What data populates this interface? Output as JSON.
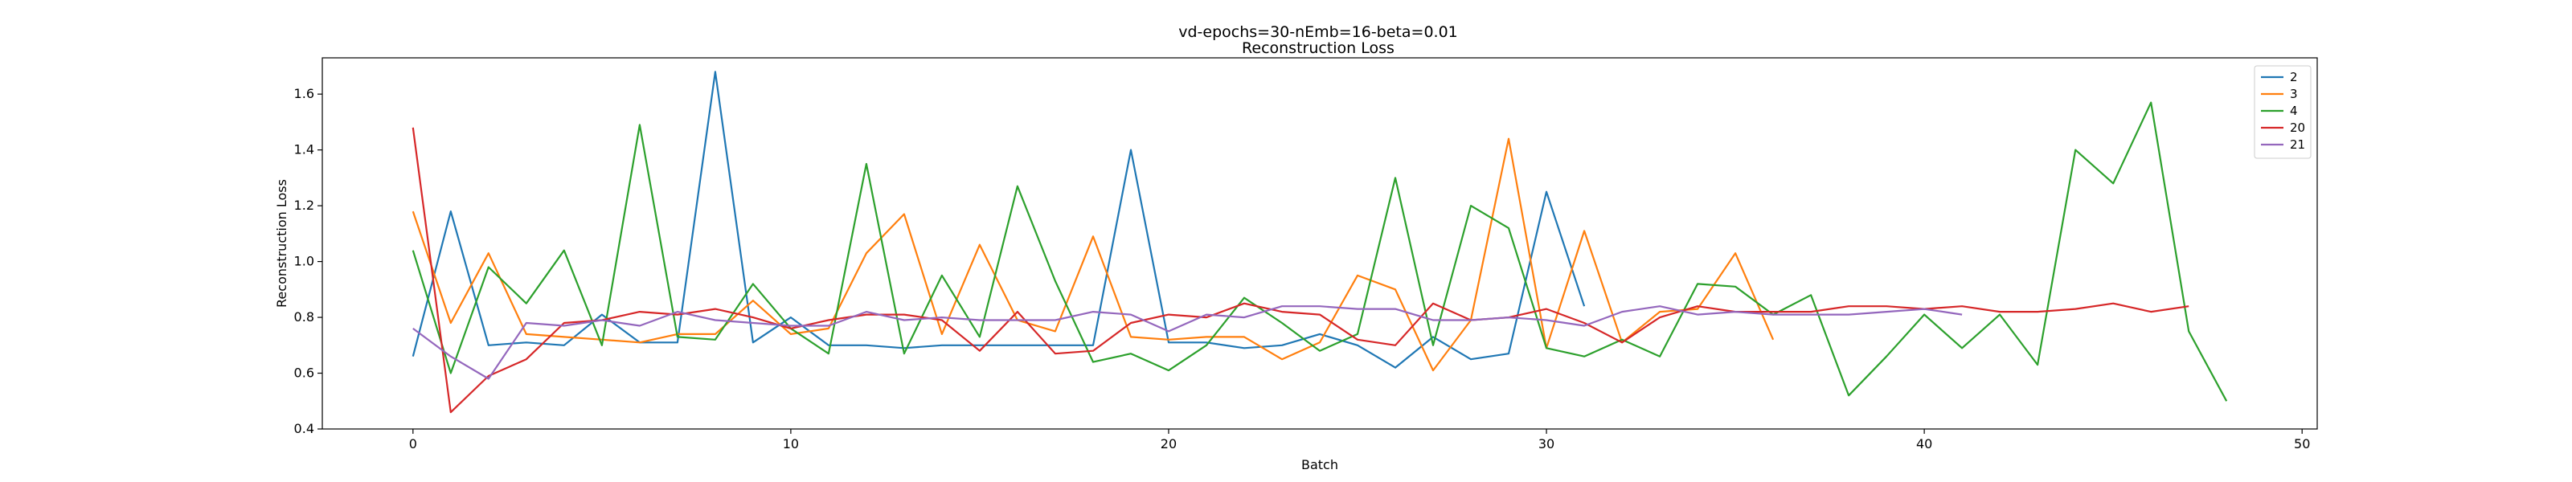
{
  "chart_data": {
    "type": "line",
    "title": "vd-epochs=30-nEmb=16-beta=0.01",
    "subtitle": "Reconstruction Loss",
    "xlabel": "Batch",
    "ylabel": "Reconstruction Loss",
    "xlim": [
      -2.4,
      50.4
    ],
    "ylim": [
      0.4,
      1.73
    ],
    "xticks": [
      0,
      10,
      20,
      30,
      40,
      50
    ],
    "yticks": [
      0.4,
      0.6,
      0.8,
      1.0,
      1.2,
      1.4,
      1.6
    ],
    "xtick_labels": [
      "0",
      "10",
      "20",
      "30",
      "40",
      "50"
    ],
    "ytick_labels": [
      "0.4",
      "0.6",
      "0.8",
      "1.0",
      "1.2",
      "1.4",
      "1.6"
    ],
    "grid": false,
    "legend_position": "top-right",
    "series": [
      {
        "name": "2",
        "color": "#1f77b4",
        "x": [
          0,
          1,
          2,
          3,
          4,
          5,
          6,
          7,
          8,
          9,
          10,
          11,
          12,
          13,
          14,
          15,
          16,
          17,
          18,
          19,
          20,
          21,
          22,
          23,
          24,
          25,
          26,
          27,
          28,
          29,
          30,
          31
        ],
        "values": [
          0.66,
          1.18,
          0.7,
          0.71,
          0.7,
          0.81,
          0.71,
          0.71,
          1.68,
          0.71,
          0.8,
          0.7,
          0.7,
          0.69,
          0.7,
          0.7,
          0.7,
          0.7,
          0.7,
          1.4,
          0.71,
          0.71,
          0.69,
          0.7,
          0.74,
          0.7,
          0.62,
          0.73,
          0.65,
          0.67,
          1.25,
          0.84
        ]
      },
      {
        "name": "3",
        "color": "#ff7f0e",
        "x": [
          0,
          1,
          2,
          3,
          4,
          5,
          6,
          7,
          8,
          9,
          10,
          11,
          12,
          13,
          14,
          15,
          16,
          17,
          18,
          19,
          20,
          21,
          22,
          23,
          24,
          25,
          26,
          27,
          28,
          29,
          30,
          31,
          32,
          33,
          34,
          35,
          36
        ],
        "values": [
          1.18,
          0.78,
          1.03,
          0.74,
          0.73,
          0.72,
          0.71,
          0.74,
          0.74,
          0.86,
          0.74,
          0.76,
          1.03,
          1.17,
          0.74,
          1.06,
          0.79,
          0.75,
          1.09,
          0.73,
          0.72,
          0.73,
          0.73,
          0.65,
          0.71,
          0.95,
          0.9,
          0.61,
          0.79,
          1.44,
          0.69,
          1.11,
          0.71,
          0.82,
          0.83,
          1.03,
          0.72
        ]
      },
      {
        "name": "4",
        "color": "#2ca02c",
        "x": [
          0,
          1,
          2,
          3,
          4,
          5,
          6,
          7,
          8,
          9,
          10,
          11,
          12,
          13,
          14,
          15,
          16,
          17,
          18,
          19,
          20,
          21,
          22,
          23,
          24,
          25,
          26,
          27,
          28,
          29,
          30,
          31,
          32,
          33,
          34,
          35,
          36,
          37,
          38,
          39,
          40,
          41,
          42,
          43,
          44,
          45,
          46,
          47,
          48
        ],
        "values": [
          1.04,
          0.6,
          0.98,
          0.85,
          1.04,
          0.7,
          1.49,
          0.73,
          0.72,
          0.92,
          0.76,
          0.67,
          1.35,
          0.67,
          0.95,
          0.73,
          1.27,
          0.93,
          0.64,
          0.67,
          0.61,
          0.7,
          0.87,
          0.78,
          0.68,
          0.74,
          1.3,
          0.7,
          1.2,
          1.12,
          0.69,
          0.66,
          0.72,
          0.66,
          0.92,
          0.91,
          0.81,
          0.88,
          0.52,
          0.66,
          0.81,
          0.69,
          0.81,
          0.63,
          1.4,
          1.28,
          1.57,
          0.75,
          0.5
        ]
      },
      {
        "name": "20",
        "color": "#d62728",
        "x": [
          0,
          1,
          2,
          3,
          4,
          5,
          6,
          7,
          8,
          9,
          10,
          11,
          12,
          13,
          14,
          15,
          16,
          17,
          18,
          19,
          20,
          21,
          22,
          23,
          24,
          25,
          26,
          27,
          28,
          29,
          30,
          31,
          32,
          33,
          34,
          35,
          36,
          37,
          38,
          39,
          40,
          41,
          42,
          43,
          44,
          45,
          46,
          47
        ],
        "values": [
          1.48,
          0.46,
          0.59,
          0.65,
          0.78,
          0.79,
          0.82,
          0.81,
          0.83,
          0.8,
          0.76,
          0.79,
          0.81,
          0.81,
          0.79,
          0.68,
          0.82,
          0.67,
          0.68,
          0.78,
          0.81,
          0.8,
          0.85,
          0.82,
          0.81,
          0.72,
          0.7,
          0.85,
          0.79,
          0.8,
          0.83,
          0.78,
          0.71,
          0.8,
          0.84,
          0.82,
          0.82,
          0.82,
          0.84,
          0.84,
          0.83,
          0.84,
          0.82,
          0.82,
          0.83,
          0.85,
          0.82,
          0.84
        ]
      },
      {
        "name": "21",
        "color": "#9467bd",
        "x": [
          0,
          1,
          2,
          3,
          4,
          5,
          6,
          7,
          8,
          9,
          10,
          11,
          12,
          13,
          14,
          15,
          16,
          17,
          18,
          19,
          20,
          21,
          22,
          23,
          24,
          25,
          26,
          27,
          28,
          29,
          30,
          31,
          32,
          33,
          34,
          35,
          36,
          37,
          38,
          39,
          40,
          41
        ],
        "values": [
          0.76,
          0.66,
          0.58,
          0.78,
          0.77,
          0.79,
          0.77,
          0.82,
          0.79,
          0.78,
          0.77,
          0.77,
          0.82,
          0.79,
          0.8,
          0.79,
          0.79,
          0.79,
          0.82,
          0.81,
          0.75,
          0.81,
          0.8,
          0.84,
          0.84,
          0.83,
          0.83,
          0.79,
          0.79,
          0.8,
          0.79,
          0.77,
          0.82,
          0.84,
          0.81,
          0.82,
          0.81,
          0.81,
          0.81,
          0.82,
          0.83,
          0.81
        ]
      }
    ]
  }
}
